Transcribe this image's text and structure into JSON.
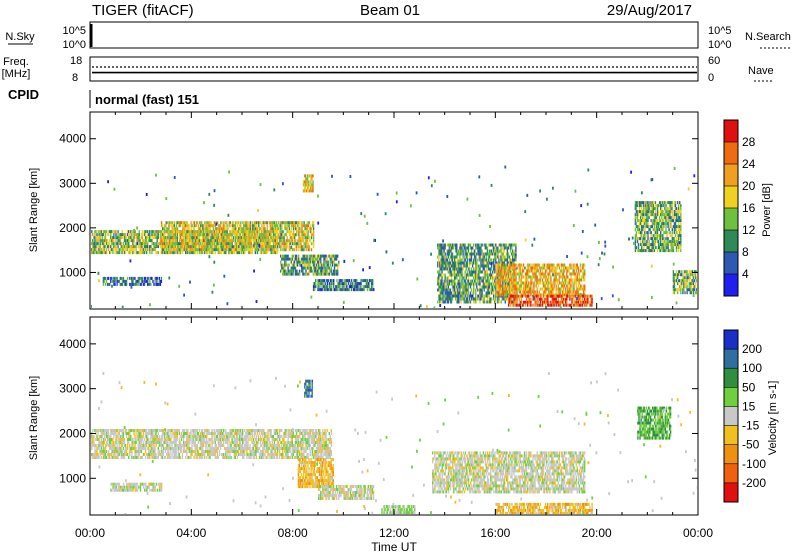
{
  "header": {
    "title": "TIGER (fitACF)",
    "beam": "Beam 01",
    "date": "29/Aug/2017"
  },
  "nsky_panel": {
    "left_label": "N.Sky",
    "right_label": "N.Search",
    "left_ticks": [
      "10^5",
      "10^0"
    ],
    "right_ticks": [
      "10^5",
      "10^0"
    ]
  },
  "freq_panel": {
    "left_label_top": "Freq.",
    "left_label_bottom": "[MHz]",
    "left_ticks": [
      "18",
      "8"
    ],
    "right_label": "Nave",
    "right_ticks": [
      "60",
      "0"
    ],
    "freq_value_mhz": 11.5,
    "nave_value": 35
  },
  "cpid_panel": {
    "label": "CPID",
    "text": "normal (fast) 151"
  },
  "time_axis": {
    "label": "Time UT",
    "ticks": [
      "00:00",
      "04:00",
      "08:00",
      "12:00",
      "16:00",
      "20:00",
      "00:00"
    ],
    "range_hours": [
      0,
      24
    ]
  },
  "chart_data": [
    {
      "type": "heatmap",
      "title": "Power",
      "ylabel": "Slant Range [km]",
      "yticks": [
        "1000",
        "2000",
        "3000",
        "4000"
      ],
      "ylim": [
        180,
        4600
      ],
      "colorbar_label": "Power [dB]",
      "colorbar_ticks": [
        "4",
        "8",
        "12",
        "16",
        "20",
        "24",
        "28"
      ],
      "colorbar_range": [
        0,
        32
      ],
      "colors": [
        "#1f1ff0",
        "#2f58b0",
        "#2e8b57",
        "#6fbf40",
        "#f0d020",
        "#f0a020",
        "#f06a10",
        "#e01010"
      ],
      "regions": [
        {
          "t": [
            0.0,
            7.4
          ],
          "r": [
            1450,
            1950
          ],
          "level": 0.45
        },
        {
          "t": [
            2.8,
            8.8
          ],
          "r": [
            1500,
            2150
          ],
          "level": 0.55
        },
        {
          "t": [
            8.4,
            8.8
          ],
          "r": [
            2850,
            3200
          ],
          "level": 0.6
        },
        {
          "t": [
            7.5,
            9.8
          ],
          "r": [
            950,
            1400
          ],
          "level": 0.35
        },
        {
          "t": [
            0.5,
            2.8
          ],
          "r": [
            700,
            900
          ],
          "level": 0.25
        },
        {
          "t": [
            8.8,
            11.2
          ],
          "r": [
            600,
            850
          ],
          "level": 0.25
        },
        {
          "t": [
            13.7,
            16.8
          ],
          "r": [
            350,
            1650
          ],
          "level": 0.35
        },
        {
          "t": [
            16.0,
            19.5
          ],
          "r": [
            500,
            1200
          ],
          "level": 0.65
        },
        {
          "t": [
            16.5,
            19.8
          ],
          "r": [
            250,
            500
          ],
          "level": 0.85
        },
        {
          "t": [
            21.5,
            23.3
          ],
          "r": [
            1500,
            2600
          ],
          "level": 0.4
        },
        {
          "t": [
            23.0,
            24.0
          ],
          "r": [
            550,
            1050
          ],
          "level": 0.4
        }
      ]
    },
    {
      "type": "heatmap",
      "title": "Velocity",
      "ylabel": "Slant Range [km]",
      "yticks": [
        "1000",
        "2000",
        "3000",
        "4000"
      ],
      "ylim": [
        180,
        4600
      ],
      "colorbar_label": "Velocity [m s-1]",
      "colorbar_ticks": [
        "200",
        "100",
        "50",
        "15",
        "-15",
        "-50",
        "-100",
        "-200"
      ],
      "colorbar_range": [
        -250,
        250
      ],
      "colors": [
        "#1a2fc8",
        "#2f6f9f",
        "#2f8f3f",
        "#6fcf3f",
        "#c8c8c8",
        "#f0c020",
        "#f09010",
        "#f06010",
        "#e01010"
      ],
      "regions": [
        {
          "t": [
            0.0,
            9.5
          ],
          "r": [
            1450,
            2100
          ],
          "v": 0
        },
        {
          "t": [
            8.2,
            9.6
          ],
          "r": [
            800,
            1450
          ],
          "v": -60
        },
        {
          "t": [
            8.45,
            8.75
          ],
          "r": [
            2800,
            3200
          ],
          "v": 160
        },
        {
          "t": [
            13.5,
            19.5
          ],
          "r": [
            700,
            1600
          ],
          "v": 0
        },
        {
          "t": [
            16.0,
            19.8
          ],
          "r": [
            220,
            450
          ],
          "v": -60
        },
        {
          "t": [
            11.5,
            12.8
          ],
          "r": [
            200,
            400
          ],
          "v": 40
        },
        {
          "t": [
            21.6,
            22.9
          ],
          "r": [
            1900,
            2600
          ],
          "v": 80
        },
        {
          "t": [
            0.8,
            2.8
          ],
          "r": [
            700,
            900
          ],
          "v": 0
        },
        {
          "t": [
            9.0,
            11.2
          ],
          "r": [
            550,
            850
          ],
          "v": 0
        }
      ]
    }
  ]
}
